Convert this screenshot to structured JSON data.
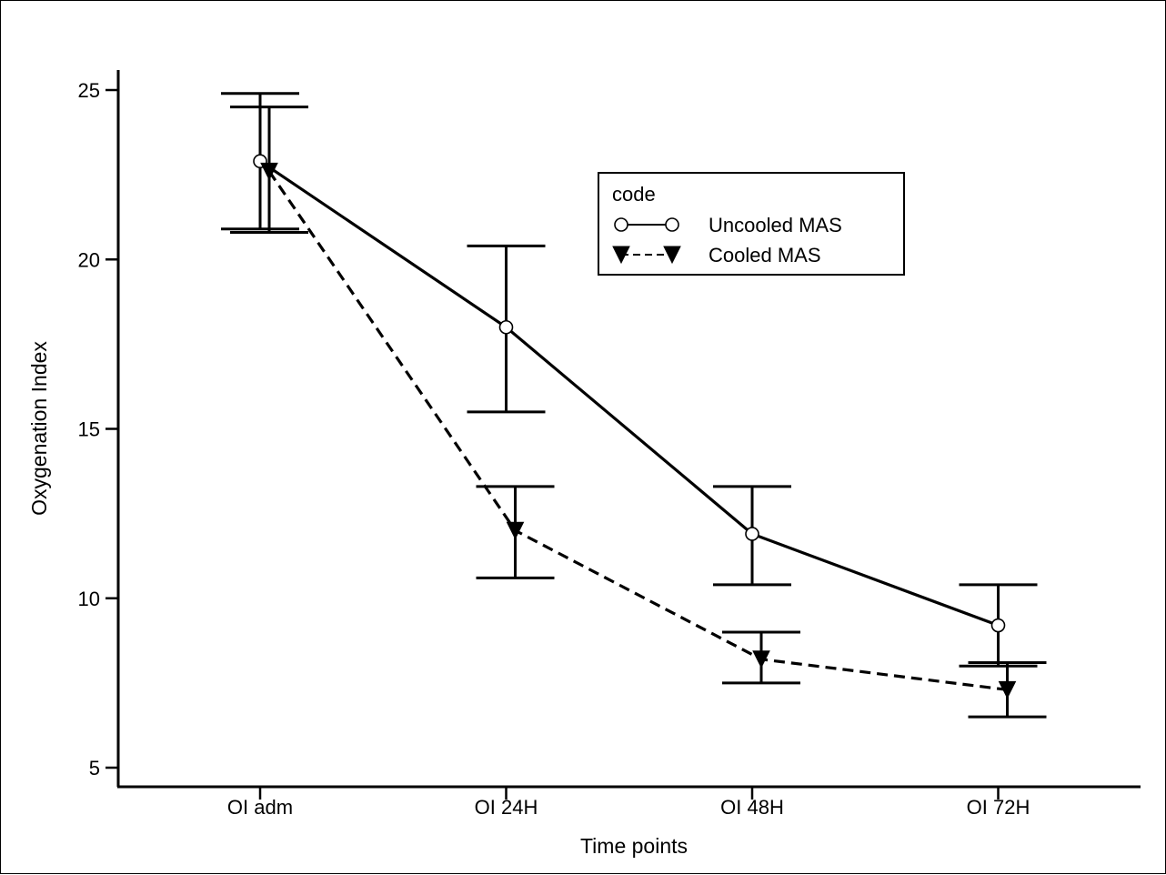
{
  "chart_data": {
    "type": "line",
    "xlabel": "Time points",
    "ylabel": "Oxygenation Index",
    "categories": [
      "OI adm",
      "OI 24H",
      "OI 48H",
      "OI 72H"
    ],
    "ylim": [
      4.4,
      26
    ],
    "yticks": [
      5,
      10,
      15,
      20,
      25
    ],
    "grid": false,
    "legend": {
      "title": "code",
      "placement": "top-right"
    },
    "series": [
      {
        "name": "Uncooled MAS",
        "marker": "open-circle",
        "line_style": "solid",
        "values": [
          22.9,
          18.0,
          11.9,
          9.2
        ],
        "error_low": [
          20.9,
          15.5,
          10.4,
          8.0
        ],
        "error_high": [
          24.9,
          20.4,
          13.3,
          10.4
        ]
      },
      {
        "name": "Cooled MAS",
        "marker": "filled-triangle-down",
        "line_style": "dashed",
        "values": [
          22.6,
          12.0,
          8.2,
          7.3
        ],
        "error_low": [
          20.8,
          10.6,
          7.5,
          6.5
        ],
        "error_high": [
          24.5,
          13.3,
          9.0,
          8.1
        ]
      }
    ]
  }
}
